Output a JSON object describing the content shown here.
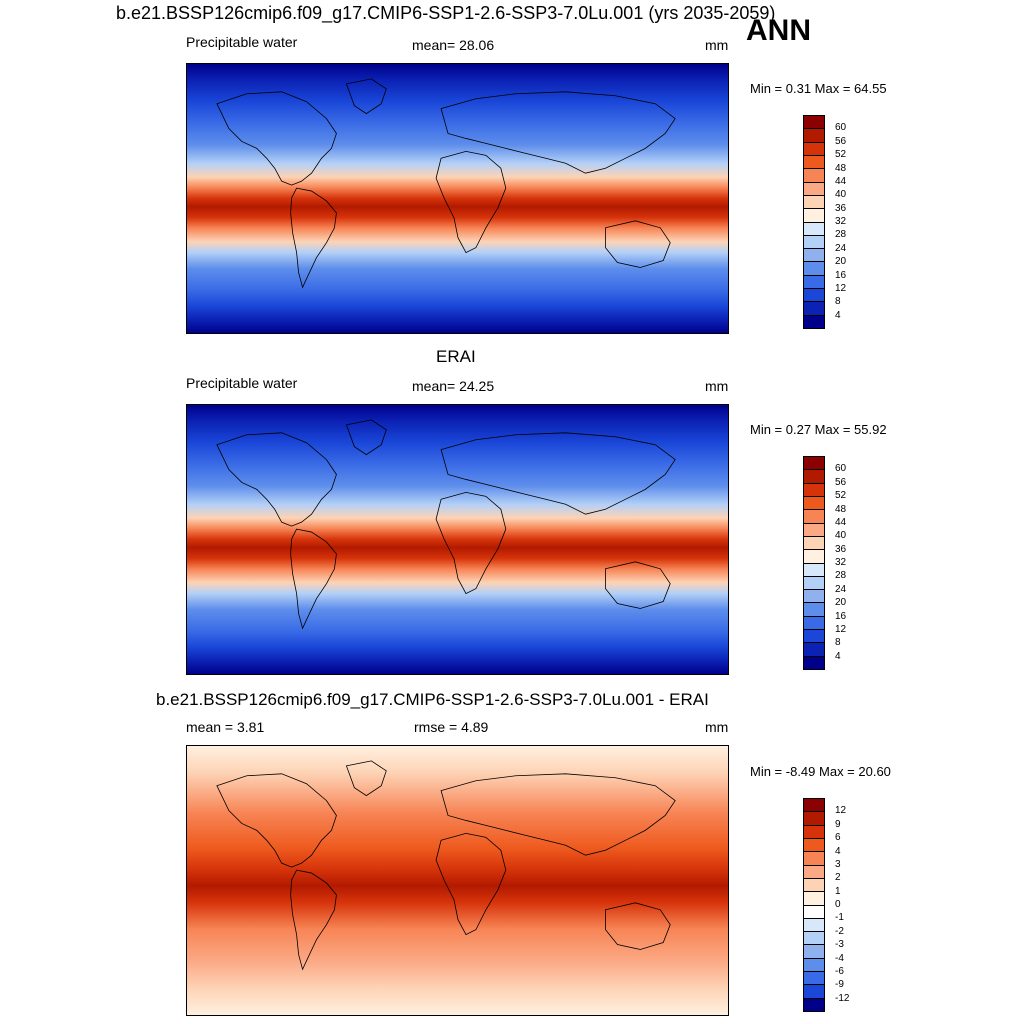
{
  "header": {
    "title": "b.e21.BSSP126cmip6.f09_g17.CMIP6-SSP1-2.6-SSP3-7.0Lu.001 (yrs 2035-2059)",
    "season": "ANN"
  },
  "panels": [
    {
      "left_label": "Precipitable water",
      "center_label": "mean=  28.06",
      "units": "mm",
      "minmax": "Min =   0.31 Max =  64.55",
      "scale": "pw"
    },
    {
      "title": "ERAI",
      "left_label": "Precipitable water",
      "center_label": "mean=  24.25",
      "units": "mm",
      "minmax": "Min =   0.27 Max =  55.92",
      "scale": "pw"
    },
    {
      "title": "b.e21.BSSP126cmip6.f09_g17.CMIP6-SSP1-2.6-SSP3-7.0Lu.001 - ERAI",
      "left_label": "mean =   3.81",
      "center_label": "rmse =   4.89",
      "units": "mm",
      "minmax": "Min =  -8.49 Max =  20.60",
      "scale": "diff"
    }
  ],
  "colorbars": {
    "pw": {
      "labels": [
        "60",
        "56",
        "52",
        "48",
        "44",
        "40",
        "36",
        "32",
        "28",
        "24",
        "20",
        "16",
        "12",
        "8",
        "4"
      ],
      "colors": [
        "#8b0000",
        "#b21a00",
        "#d6330a",
        "#ee5a1e",
        "#f78455",
        "#fba985",
        "#fdd3b5",
        "#fff0e0",
        "#d8e8fb",
        "#b3d0f7",
        "#8fb2ef",
        "#5e8eeb",
        "#3a6be6",
        "#1a47d8",
        "#0b22b5",
        "#00008b"
      ]
    },
    "diff": {
      "labels": [
        "12",
        "9",
        "6",
        "4",
        "3",
        "2",
        "1",
        "0",
        "-1",
        "-2",
        "-3",
        "-4",
        "-6",
        "-9",
        "-12"
      ],
      "colors": [
        "#8b0000",
        "#b21a00",
        "#d6330a",
        "#ee5a1e",
        "#f78455",
        "#fba985",
        "#fdd3b5",
        "#fff0e0",
        "#ffffff",
        "#d8e8fb",
        "#b3d0f7",
        "#8fb2ef",
        "#5e8eeb",
        "#3a6be6",
        "#1a47d8",
        "#00008b"
      ]
    }
  }
}
